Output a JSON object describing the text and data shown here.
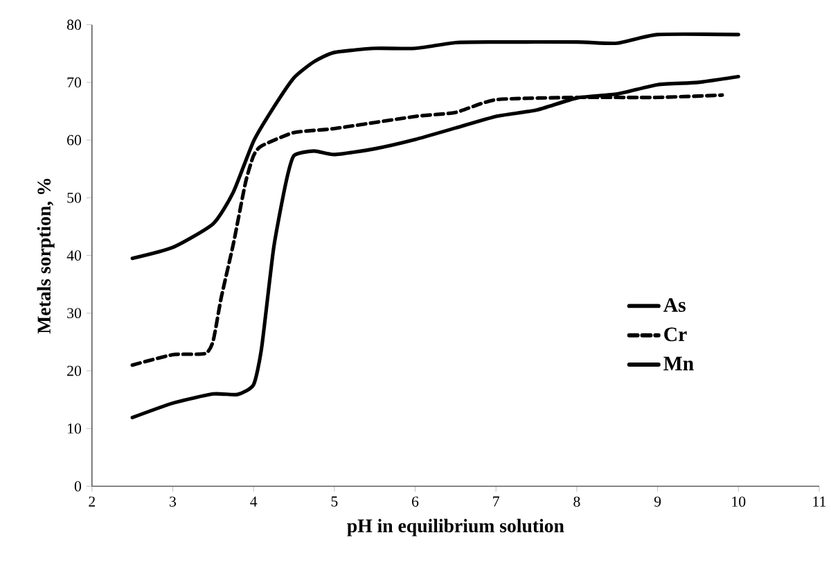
{
  "chart_data": {
    "type": "line",
    "xlabel": "pH in equilibrium solution",
    "ylabel": "Metals sorption, %",
    "xlim": [
      2,
      11
    ],
    "xticks": [
      2,
      3,
      4,
      5,
      6,
      7,
      8,
      9,
      10,
      11
    ],
    "ylim": [
      0,
      80
    ],
    "yticks": [
      0,
      10,
      20,
      30,
      40,
      50,
      60,
      70,
      80
    ],
    "grid": false,
    "legend": "right",
    "marker": "none",
    "series": [
      {
        "name": "As",
        "color": "#000000",
        "line_style": "solid",
        "x": [
          2.5,
          3,
          3.5,
          3.75,
          4,
          4.25,
          4.5,
          4.75,
          5,
          5.5,
          6,
          6.5,
          7,
          8,
          8.5,
          9,
          10
        ],
        "values": [
          39.5,
          41.4,
          45.5,
          51,
          59.8,
          65.7,
          70.8,
          73.6,
          75.2,
          75.9,
          75.9,
          76.9,
          77,
          77,
          76.8,
          78.3,
          78.3
        ]
      },
      {
        "name": "Cr",
        "color": "#000000",
        "line_style": "dashed",
        "x": [
          2.5,
          3,
          3.4,
          3.5,
          3.6,
          3.75,
          3.9,
          4,
          4.1,
          4.5,
          5,
          6,
          6.5,
          7,
          8,
          9,
          9.8
        ],
        "values": [
          21,
          22.8,
          23,
          25.2,
          32.7,
          42,
          52.6,
          57.3,
          59,
          61.3,
          62,
          64.1,
          64.8,
          67,
          67.4,
          67.4,
          67.8
        ]
      },
      {
        "name": "Mn",
        "color": "#000000",
        "line_style": "solid",
        "x": [
          2.5,
          3,
          3.5,
          3.8,
          4,
          4.1,
          4.25,
          4.4,
          4.5,
          4.75,
          5,
          5.5,
          6,
          6.5,
          7,
          7.5,
          8,
          8.5,
          9,
          9.5,
          10
        ],
        "values": [
          11.9,
          14.4,
          16,
          15.9,
          17.6,
          24,
          41.4,
          52.6,
          57.3,
          58.1,
          57.5,
          58.5,
          60.1,
          62.1,
          64.1,
          65.2,
          67.3,
          68,
          69.6,
          70,
          71
        ]
      }
    ]
  }
}
